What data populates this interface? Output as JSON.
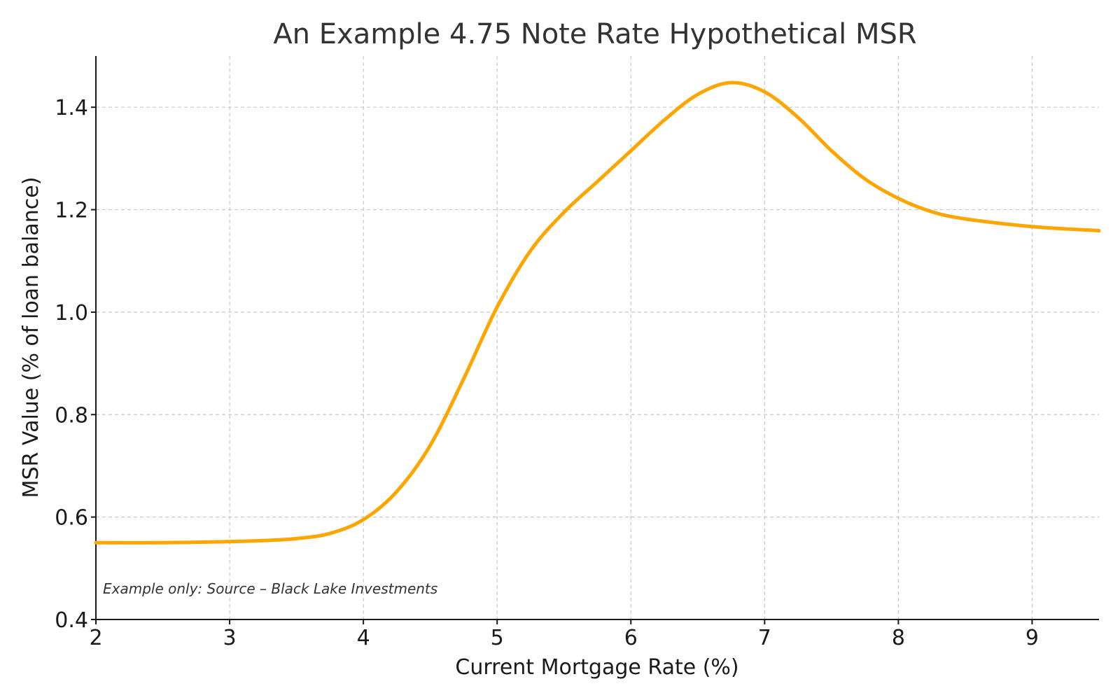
{
  "chart_data": {
    "type": "line",
    "title": "An Example 4.75 Note Rate Hypothetical MSR",
    "xlabel": "Current Mortgage Rate (%)",
    "ylabel": "MSR Value (% of loan balance)",
    "xlim": [
      2,
      9.5
    ],
    "ylim": [
      0.4,
      1.5
    ],
    "xticks": [
      2,
      3,
      4,
      5,
      6,
      7,
      8,
      9
    ],
    "yticks": [
      0.4,
      0.6,
      0.8,
      1.0,
      1.2,
      1.4
    ],
    "ytick_labels": [
      "0.4",
      "0.6",
      "0.8",
      "1.0",
      "1.2",
      "1.4"
    ],
    "grid": true,
    "annotation": "Example only: Source – Black Lake Investments",
    "series": [
      {
        "color": "#FFA500",
        "x": [
          2.0,
          2.5,
          3.0,
          3.25,
          3.5,
          3.75,
          4.0,
          4.25,
          4.5,
          4.75,
          5.0,
          5.25,
          5.5,
          5.75,
          6.0,
          6.25,
          6.5,
          6.75,
          7.0,
          7.25,
          7.5,
          7.75,
          8.0,
          8.25,
          8.5,
          9.0,
          9.5
        ],
        "y": [
          0.55,
          0.55,
          0.552,
          0.554,
          0.558,
          0.568,
          0.595,
          0.65,
          0.74,
          0.87,
          1.01,
          1.12,
          1.195,
          1.255,
          1.315,
          1.375,
          1.425,
          1.448,
          1.43,
          1.38,
          1.315,
          1.26,
          1.222,
          1.196,
          1.182,
          1.167,
          1.159
        ]
      }
    ]
  }
}
